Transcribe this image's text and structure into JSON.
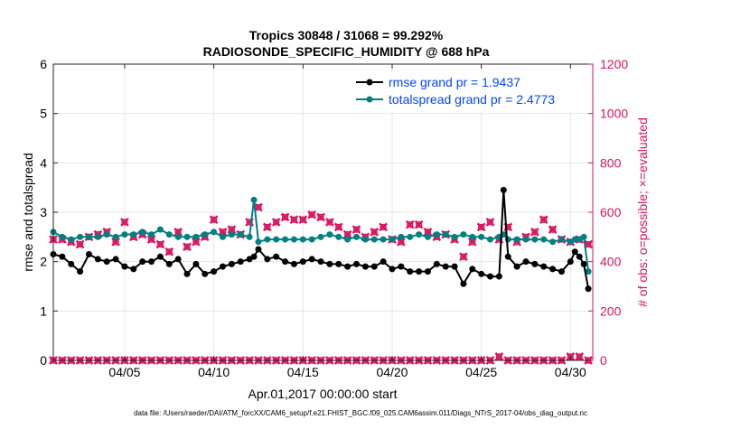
{
  "chart_data": {
    "type": "line",
    "title_line1": "Tropics 30848 / 31068 = 99.292%",
    "title_line2": "RADIOSONDE_SPECIFIC_HUMIDITY @ 688 hPa",
    "xlabel": "Apr.01,2017 00:00:00 start",
    "ylabel_left": "rmse and totalspread",
    "ylabel_right": "# of obs: o=possible; ×=evaluated",
    "footer": "data file: /Users/raeder/DAI/ATM_forcXX/CAM6_setup/f.e21.FHIST_BGC.f09_025.CAM6assim.011/Diags_NTrS_2017-04/obs_diag_output.nc",
    "xlim": [
      1,
      31.25
    ],
    "ylim_left": [
      0,
      6
    ],
    "ylim_right": [
      0,
      1200
    ],
    "x_ticks": [
      5,
      10,
      15,
      20,
      25,
      30
    ],
    "x_tick_labels": [
      "04/05",
      "04/10",
      "04/15",
      "04/20",
      "04/25",
      "04/30"
    ],
    "y_left_ticks": [
      0,
      1,
      2,
      3,
      4,
      5,
      6
    ],
    "y_left_tick_labels": [
      "0",
      "1",
      "2",
      "3",
      "4",
      "5",
      "6"
    ],
    "y_right_ticks": [
      0,
      200,
      400,
      600,
      800,
      1000,
      1200
    ],
    "y_right_tick_labels": [
      "0",
      "200",
      "400",
      "600",
      "800",
      "1000",
      "1200"
    ],
    "grid": true,
    "legend_position": "top-right",
    "colors": {
      "rmse": "#000000",
      "spread": "#008080",
      "obs": "#d8145e",
      "right_axis": "#d8145e",
      "legend_text": "#0645ff"
    },
    "series": [
      {
        "name": "rmse grand pr = 1.9437",
        "axis": "left",
        "x": [
          1.0,
          1.5,
          2.0,
          2.5,
          3.0,
          3.5,
          4.0,
          4.5,
          5.0,
          5.5,
          6.0,
          6.5,
          7.0,
          7.5,
          8.0,
          8.5,
          9.0,
          9.5,
          10.0,
          10.5,
          11.0,
          11.5,
          12.0,
          12.25,
          12.5,
          13.0,
          13.5,
          14.0,
          14.5,
          15.0,
          15.5,
          16.0,
          16.5,
          17.0,
          17.5,
          18.0,
          18.5,
          19.0,
          19.5,
          20.0,
          20.5,
          21.0,
          21.5,
          22.0,
          22.5,
          23.0,
          23.5,
          24.0,
          24.5,
          25.0,
          25.5,
          26.0,
          26.25,
          26.5,
          27.0,
          27.5,
          28.0,
          28.5,
          29.0,
          29.5,
          30.0,
          30.25,
          30.5,
          30.75,
          31.0
        ],
        "values": [
          2.15,
          2.1,
          1.95,
          1.8,
          2.15,
          2.05,
          2.0,
          2.05,
          1.9,
          1.85,
          2.0,
          2.0,
          2.1,
          1.95,
          2.05,
          1.75,
          1.95,
          1.75,
          1.8,
          1.9,
          1.95,
          2.0,
          2.05,
          2.1,
          2.25,
          2.05,
          2.1,
          2.0,
          1.95,
          2.0,
          2.05,
          2.0,
          1.95,
          1.95,
          1.9,
          1.95,
          1.9,
          1.9,
          2.0,
          1.85,
          1.9,
          1.8,
          1.8,
          1.8,
          1.95,
          1.9,
          1.9,
          1.55,
          1.85,
          1.75,
          1.7,
          1.7,
          3.45,
          2.1,
          1.9,
          2.0,
          1.95,
          1.9,
          1.85,
          1.8,
          2.0,
          2.2,
          2.1,
          1.95,
          1.45
        ]
      },
      {
        "name": "totalspread grand pr = 2.4773",
        "axis": "left",
        "x": [
          1.0,
          1.5,
          2.0,
          2.5,
          3.0,
          3.5,
          4.0,
          4.5,
          5.0,
          5.5,
          6.0,
          6.5,
          7.0,
          7.5,
          8.0,
          8.5,
          9.0,
          9.5,
          10.0,
          10.5,
          11.0,
          11.5,
          12.0,
          12.25,
          12.5,
          13.0,
          13.5,
          14.0,
          14.5,
          15.0,
          15.5,
          16.0,
          16.5,
          17.0,
          17.5,
          18.0,
          18.5,
          19.0,
          19.5,
          20.0,
          20.5,
          21.0,
          21.5,
          22.0,
          22.5,
          23.0,
          23.5,
          24.0,
          24.5,
          25.0,
          25.5,
          26.0,
          26.25,
          26.5,
          27.0,
          27.5,
          28.0,
          28.5,
          29.0,
          29.5,
          30.0,
          30.25,
          30.5,
          30.75,
          31.0
        ],
        "values": [
          2.6,
          2.5,
          2.45,
          2.5,
          2.5,
          2.5,
          2.55,
          2.5,
          2.55,
          2.55,
          2.6,
          2.55,
          2.65,
          2.55,
          2.5,
          2.5,
          2.5,
          2.55,
          2.6,
          2.5,
          2.55,
          2.55,
          2.5,
          3.25,
          2.4,
          2.45,
          2.45,
          2.45,
          2.45,
          2.45,
          2.45,
          2.5,
          2.55,
          2.5,
          2.45,
          2.5,
          2.45,
          2.45,
          2.45,
          2.45,
          2.5,
          2.5,
          2.55,
          2.5,
          2.55,
          2.55,
          2.5,
          2.55,
          2.5,
          2.5,
          2.45,
          2.5,
          2.55,
          2.45,
          2.45,
          2.45,
          2.45,
          2.45,
          2.4,
          2.45,
          2.4,
          2.45,
          2.45,
          2.5,
          1.8
        ]
      },
      {
        "name": "obs evaluated",
        "axis": "right",
        "x": [
          1.0,
          1.5,
          2.0,
          2.5,
          3.0,
          3.5,
          4.0,
          4.5,
          5.0,
          5.5,
          6.0,
          6.5,
          7.0,
          7.5,
          8.0,
          8.5,
          9.0,
          9.5,
          10.0,
          10.5,
          11.0,
          11.5,
          12.0,
          12.5,
          13.0,
          13.5,
          14.0,
          14.5,
          15.0,
          15.5,
          16.0,
          16.5,
          17.0,
          17.5,
          18.0,
          18.5,
          19.0,
          19.5,
          20.0,
          20.5,
          21.0,
          21.5,
          22.0,
          22.5,
          23.0,
          23.5,
          24.0,
          24.5,
          25.0,
          25.5,
          26.0,
          26.5,
          27.0,
          27.5,
          28.0,
          28.5,
          29.0,
          29.5,
          30.0,
          30.5,
          31.0
        ],
        "values": [
          490,
          490,
          480,
          470,
          500,
          510,
          520,
          480,
          560,
          500,
          510,
          490,
          470,
          440,
          520,
          460,
          480,
          500,
          570,
          520,
          530,
          510,
          560,
          620,
          540,
          560,
          580,
          570,
          570,
          590,
          580,
          560,
          540,
          510,
          530,
          500,
          520,
          540,
          490,
          480,
          550,
          550,
          520,
          500,
          510,
          490,
          420,
          480,
          540,
          560,
          490,
          540,
          480,
          500,
          520,
          570,
          530,
          490,
          480,
          490,
          470
        ]
      },
      {
        "name": "obs possible",
        "axis": "right",
        "x": [
          1.0,
          1.5,
          2.0,
          2.5,
          3.0,
          3.5,
          4.0,
          4.5,
          5.0,
          5.5,
          6.0,
          6.5,
          7.0,
          7.5,
          8.0,
          8.5,
          9.0,
          9.5,
          10.0,
          10.5,
          11.0,
          11.5,
          12.0,
          12.5,
          13.0,
          13.5,
          14.0,
          14.5,
          15.0,
          15.5,
          16.0,
          16.5,
          17.0,
          17.5,
          18.0,
          18.5,
          19.0,
          19.5,
          20.0,
          20.5,
          21.0,
          21.5,
          22.0,
          22.5,
          23.0,
          23.5,
          24.0,
          24.5,
          25.0,
          25.5,
          26.0,
          26.5,
          27.0,
          27.5,
          28.0,
          28.5,
          29.0,
          29.5,
          30.0,
          30.5,
          31.0
        ],
        "values": [
          0,
          0,
          0,
          0,
          0,
          0,
          0,
          0,
          0,
          0,
          0,
          0,
          0,
          0,
          0,
          0,
          0,
          0,
          0,
          0,
          0,
          0,
          0,
          0,
          0,
          0,
          0,
          0,
          0,
          0,
          0,
          0,
          0,
          0,
          0,
          0,
          0,
          0,
          0,
          0,
          0,
          0,
          0,
          0,
          0,
          0,
          0,
          0,
          0,
          0,
          15,
          0,
          0,
          0,
          0,
          0,
          0,
          0,
          15,
          15,
          0
        ]
      }
    ]
  }
}
